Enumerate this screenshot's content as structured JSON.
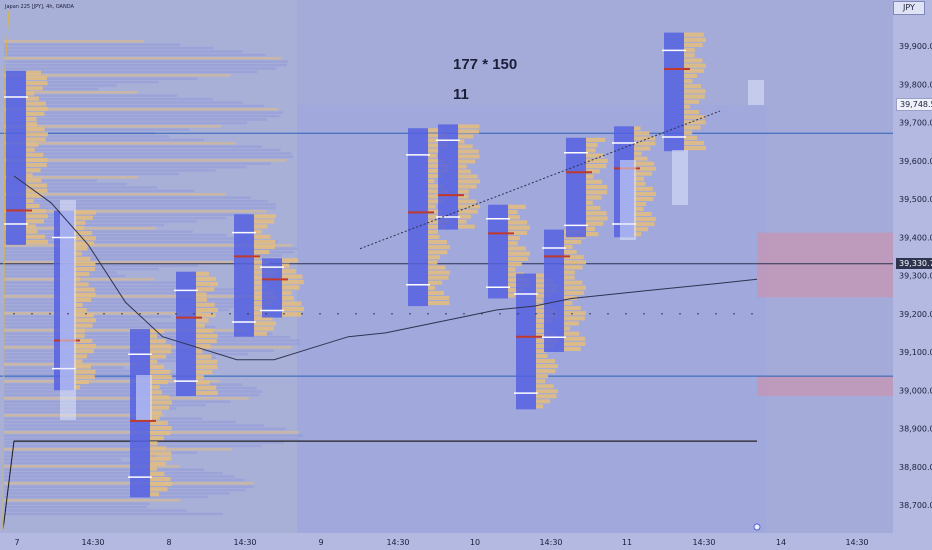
{
  "chart_title": "Japan 225 [JPY], 4h, OANDA",
  "currency": "JPY",
  "annotations": {
    "line1": "177 * 150",
    "line2": "11"
  },
  "price_badges": {
    "last": "39,748.5",
    "level": "39,330.7"
  },
  "colors": {
    "background": "#a9b0d8",
    "profile_blue": "#5562e0",
    "profile_orange": "#e2bd82",
    "poc_red": "#c0392b",
    "vwap": "#2e3350",
    "zone_pink": "#c794b4",
    "level_blue": "#2d62b8",
    "level_black": "#1c1c1c"
  },
  "chart_data": {
    "type": "candlestick-volume-profile",
    "x_labels": [
      "7",
      "14:30",
      "8",
      "14:30",
      "9",
      "14:30",
      "10",
      "14:30",
      "11",
      "14:30",
      "14",
      "14:30"
    ],
    "y_ticks": [
      "39,900.0",
      "39,800.0",
      "39,700.0",
      "39,600.0",
      "39,500.0",
      "39,400.0",
      "39,300.0",
      "39,200.0",
      "39,100.0",
      "39,000.0",
      "38,900.0",
      "38,800.0",
      "38,700.0"
    ],
    "y_tick_values": [
      39900,
      39800,
      39700,
      39600,
      39500,
      39400,
      39300,
      39200,
      39100,
      39000,
      38900,
      38800,
      38700
    ],
    "ylim": [
      38660,
      39960
    ],
    "last_price": 39748.5,
    "horizontal_levels": [
      {
        "price": 39672,
        "color": "#2d62b8"
      },
      {
        "price": 39330.7,
        "color": "#2e3350"
      },
      {
        "price": 39037,
        "color": "#2d62b8"
      },
      {
        "price": 38867,
        "color": "#1c1c1c"
      }
    ],
    "zones": [
      {
        "from": 39412,
        "to": 39243,
        "color": "#c794b4"
      },
      {
        "from": 39037,
        "to": 38985,
        "color": "#c794b4"
      }
    ],
    "session_profiles": [
      {
        "session": 1,
        "high": 39835,
        "low": 39380,
        "poc": 39470
      },
      {
        "session": 2,
        "high": 39470,
        "low": 39000,
        "poc": 39130
      },
      {
        "session": 3,
        "high": 39160,
        "low": 38720,
        "poc": 38920
      },
      {
        "session": 4,
        "high": 39310,
        "low": 38985,
        "poc": 39190
      },
      {
        "session": 5,
        "high": 39460,
        "low": 39140,
        "poc": 39350
      },
      {
        "session": 6,
        "high": 39345,
        "low": 39190,
        "poc": 39290
      },
      {
        "session": 7,
        "high": 39685,
        "low": 39220,
        "poc": 39465
      },
      {
        "session": 8,
        "high": 39695,
        "low": 39420,
        "poc": 39510
      },
      {
        "session": 9,
        "high": 39485,
        "low": 39240,
        "poc": 39410
      },
      {
        "session": 10,
        "high": 39305,
        "low": 38950,
        "poc": 39140
      },
      {
        "session": 11,
        "high": 39420,
        "low": 39100,
        "poc": 39350
      },
      {
        "session": 12,
        "high": 39660,
        "low": 39400,
        "poc": 39570
      },
      {
        "session": 13,
        "high": 39690,
        "low": 39400,
        "poc": 39580
      },
      {
        "session": 14,
        "high": 39935,
        "low": 39625,
        "poc": 39840
      }
    ],
    "vwap": [
      [
        0,
        39560
      ],
      [
        20,
        39490
      ],
      [
        40,
        39380
      ],
      [
        60,
        39230
      ],
      [
        80,
        39140
      ],
      [
        100,
        39110
      ],
      [
        120,
        39080
      ],
      [
        140,
        39080
      ],
      [
        160,
        39110
      ],
      [
        180,
        39140
      ],
      [
        200,
        39150
      ],
      [
        220,
        39170
      ],
      [
        240,
        39190
      ],
      [
        260,
        39210
      ],
      [
        280,
        39220
      ],
      [
        300,
        39240
      ],
      [
        320,
        39250
      ],
      [
        340,
        39260
      ],
      [
        360,
        39270
      ],
      [
        380,
        39280
      ],
      [
        400,
        39290
      ]
    ]
  }
}
